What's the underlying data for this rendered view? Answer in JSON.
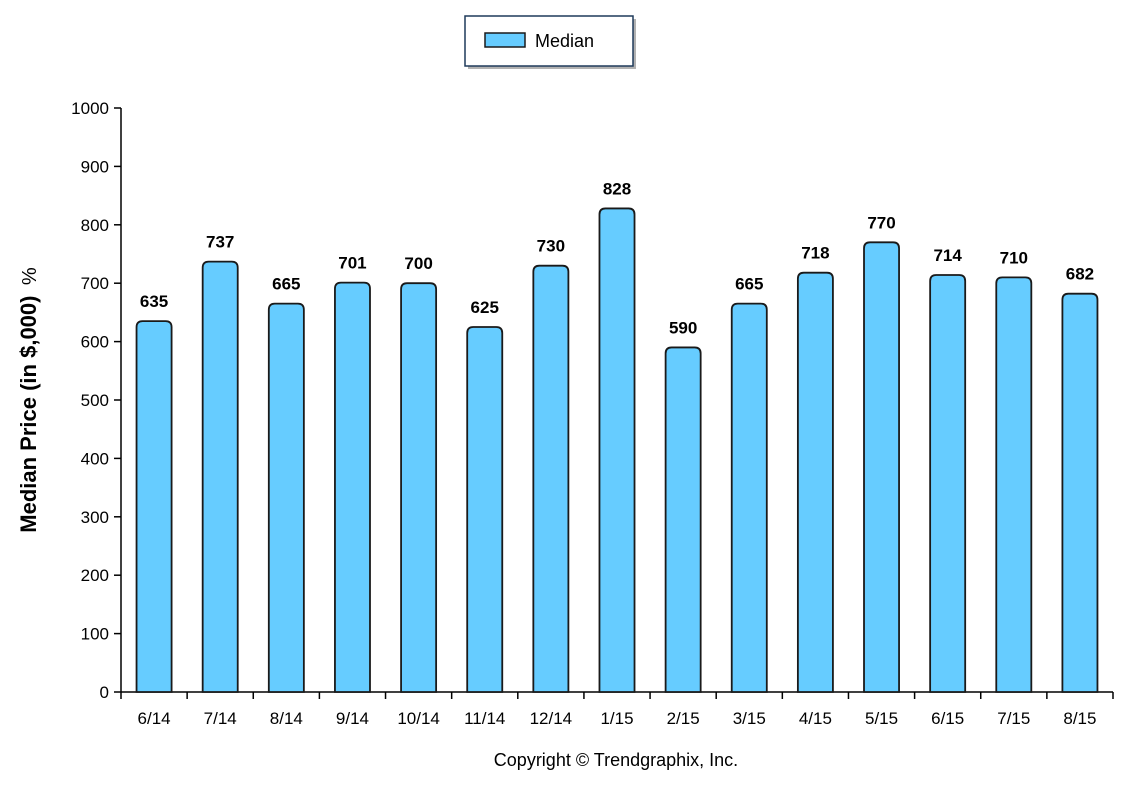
{
  "chart_data": {
    "type": "bar",
    "categories": [
      "6/14",
      "7/14",
      "8/14",
      "9/14",
      "10/14",
      "11/14",
      "12/14",
      "1/15",
      "2/15",
      "3/15",
      "4/15",
      "5/15",
      "6/15",
      "7/15",
      "8/15"
    ],
    "series": [
      {
        "name": "Median",
        "values": [
          635,
          737,
          665,
          701,
          700,
          625,
          730,
          828,
          590,
          665,
          718,
          770,
          714,
          710,
          682
        ]
      }
    ],
    "ylabel": "Median Price (in $,000)",
    "ylabel_suffix": "%",
    "ylim": [
      0,
      1000
    ],
    "yticks": [
      0,
      100,
      200,
      300,
      400,
      500,
      600,
      700,
      800,
      900,
      1000
    ],
    "legend": "top-center",
    "grid": false,
    "bar_color": "#66ccff",
    "bar_stroke": "#1a1a1a"
  },
  "footer": {
    "copyright": "Copyright © Trendgraphix, Inc."
  }
}
